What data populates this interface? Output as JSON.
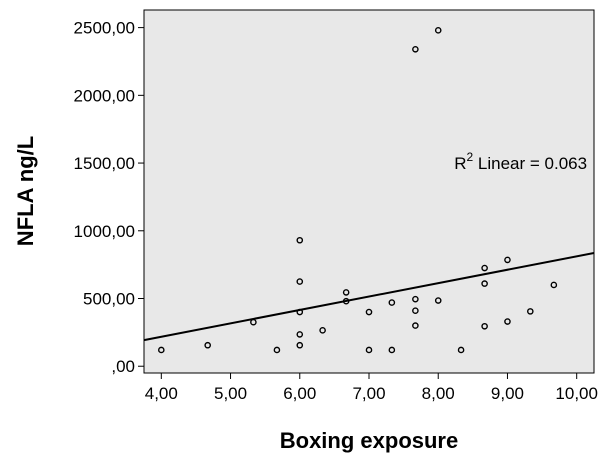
{
  "chart_data": {
    "type": "scatter",
    "title": "",
    "xlabel": "Boxing exposure",
    "ylabel": "NFLA ng/L",
    "xlim": [
      3.75,
      10.25
    ],
    "ylim": [
      -50,
      2630
    ],
    "x_ticks": [
      "4,00",
      "5,00",
      "6,00",
      "7,00",
      "8,00",
      "9,00",
      "10,00"
    ],
    "x_tick_values": [
      4,
      5,
      6,
      7,
      8,
      9,
      10
    ],
    "y_ticks": [
      ",00",
      "500,00",
      "1000,00",
      "1500,00",
      "2000,00",
      "2500,00"
    ],
    "y_tick_values": [
      0,
      500,
      1000,
      1500,
      2000,
      2500
    ],
    "points": [
      {
        "x": 4.0,
        "y": 120
      },
      {
        "x": 4.67,
        "y": 155
      },
      {
        "x": 5.33,
        "y": 325
      },
      {
        "x": 5.67,
        "y": 120
      },
      {
        "x": 6.0,
        "y": 930
      },
      {
        "x": 6.0,
        "y": 625
      },
      {
        "x": 6.0,
        "y": 400
      },
      {
        "x": 6.0,
        "y": 235
      },
      {
        "x": 6.0,
        "y": 155
      },
      {
        "x": 6.33,
        "y": 265
      },
      {
        "x": 6.67,
        "y": 545
      },
      {
        "x": 6.67,
        "y": 480
      },
      {
        "x": 7.0,
        "y": 400
      },
      {
        "x": 7.0,
        "y": 120
      },
      {
        "x": 7.33,
        "y": 470
      },
      {
        "x": 7.33,
        "y": 120
      },
      {
        "x": 7.67,
        "y": 2340
      },
      {
        "x": 7.67,
        "y": 495
      },
      {
        "x": 7.67,
        "y": 410
      },
      {
        "x": 7.67,
        "y": 300
      },
      {
        "x": 8.0,
        "y": 2480
      },
      {
        "x": 8.0,
        "y": 485
      },
      {
        "x": 8.33,
        "y": 120
      },
      {
        "x": 8.67,
        "y": 725
      },
      {
        "x": 8.67,
        "y": 610
      },
      {
        "x": 8.67,
        "y": 295
      },
      {
        "x": 9.0,
        "y": 785
      },
      {
        "x": 9.0,
        "y": 330
      },
      {
        "x": 9.33,
        "y": 405
      },
      {
        "x": 9.67,
        "y": 600
      }
    ],
    "fit_line": {
      "x": [
        3.75,
        10.25
      ],
      "y": [
        193,
        836
      ]
    },
    "annotation": {
      "prefix": "R",
      "sup": "2",
      "suffix": " Linear = 0.063",
      "x": 10.15,
      "y": 1500
    },
    "grid": false,
    "legend": "none",
    "colors": {
      "plot_background": "#e8e8e8",
      "point_stroke": "#000000",
      "line": "#000000"
    }
  }
}
